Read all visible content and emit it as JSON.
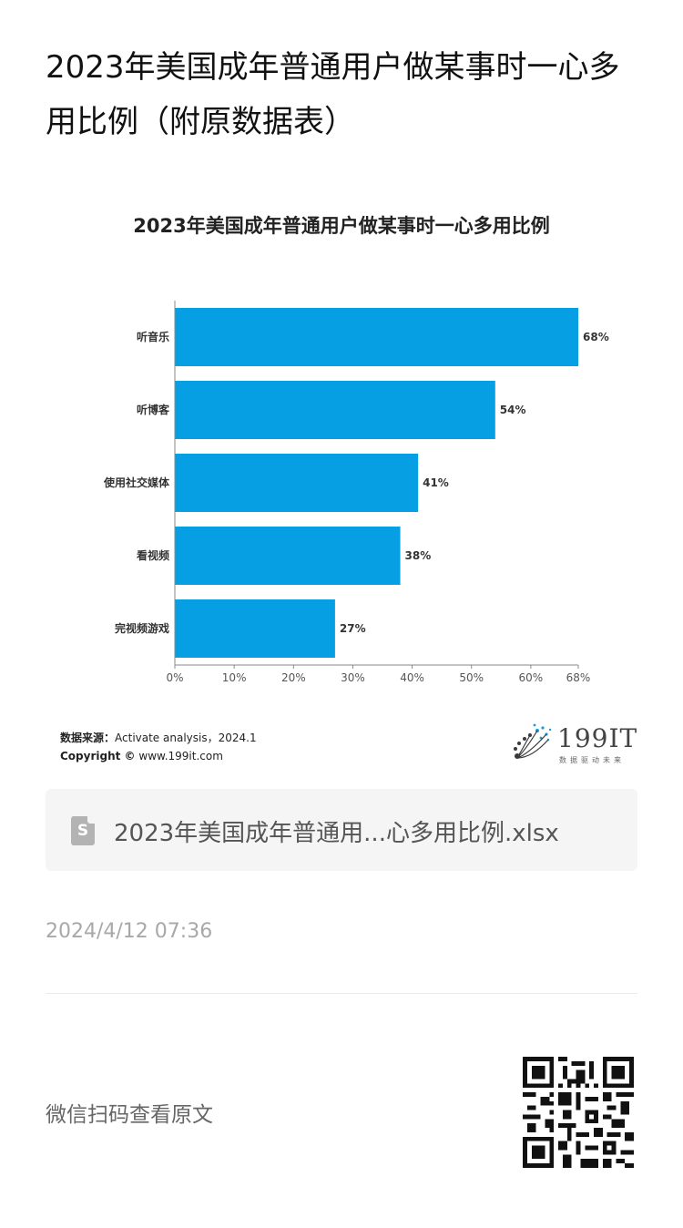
{
  "page": {
    "title": "2023年美国成年普通用户做某事时一心多用比例（附原数据表）"
  },
  "chart_data": {
    "type": "bar",
    "orientation": "horizontal",
    "title": "2023年美国成年普通用户做某事时一心多用比例",
    "categories": [
      "听音乐",
      "听博客",
      "使用社交媒体",
      "看视频",
      "完视频游戏"
    ],
    "values": [
      68,
      54,
      41,
      38,
      27
    ],
    "value_labels": [
      "68%",
      "54%",
      "41%",
      "38%",
      "27%"
    ],
    "xlim": [
      0,
      68
    ],
    "x_ticks": [
      0,
      10,
      20,
      30,
      40,
      50,
      60,
      68
    ],
    "x_tick_labels": [
      "0%",
      "10%",
      "20%",
      "30%",
      "40%",
      "50%",
      "60%",
      "68%"
    ],
    "bar_color": "#069fe4",
    "grid": false
  },
  "source": {
    "label": "数据来源：",
    "text": "Activate analysis，2024.1",
    "copyright_label": "Copyright ©",
    "copyright_text": "www.199it.com"
  },
  "logo": {
    "text": "199IT",
    "subtitle": "数据驱动未来"
  },
  "attachment": {
    "icon": "spreadsheet-file-icon",
    "icon_letter": "S",
    "file_name": "2023年美国成年普通用...心多用比例.xlsx"
  },
  "meta": {
    "timestamp": "2024/4/12 07:36",
    "qr_hint": "微信扫码查看原文"
  }
}
